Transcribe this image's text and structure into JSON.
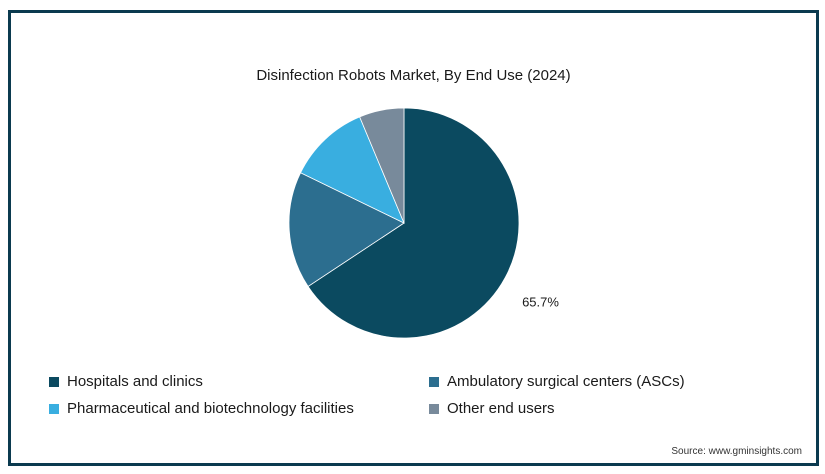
{
  "chart_data": {
    "type": "pie",
    "title": "Disinfection Robots Market, By End Use (2024)",
    "slices": [
      {
        "label": "Hospitals and clinics",
        "value": 65.7,
        "color": "#0b4a60",
        "data_label": "65.7%"
      },
      {
        "label": "Ambulatory surgical centers (ASCs)",
        "value": 16.5,
        "color": "#2c6e8f",
        "data_label": ""
      },
      {
        "label": "Pharmaceutical and biotechnology facilities",
        "value": 11.5,
        "color": "#39aee0",
        "data_label": ""
      },
      {
        "label": "Other end users",
        "value": 6.3,
        "color": "#788a9b",
        "data_label": ""
      }
    ],
    "legend_position": "bottom",
    "start_angle_deg": 0,
    "direction": "clockwise"
  },
  "source": "Source: www.gminsights.com"
}
